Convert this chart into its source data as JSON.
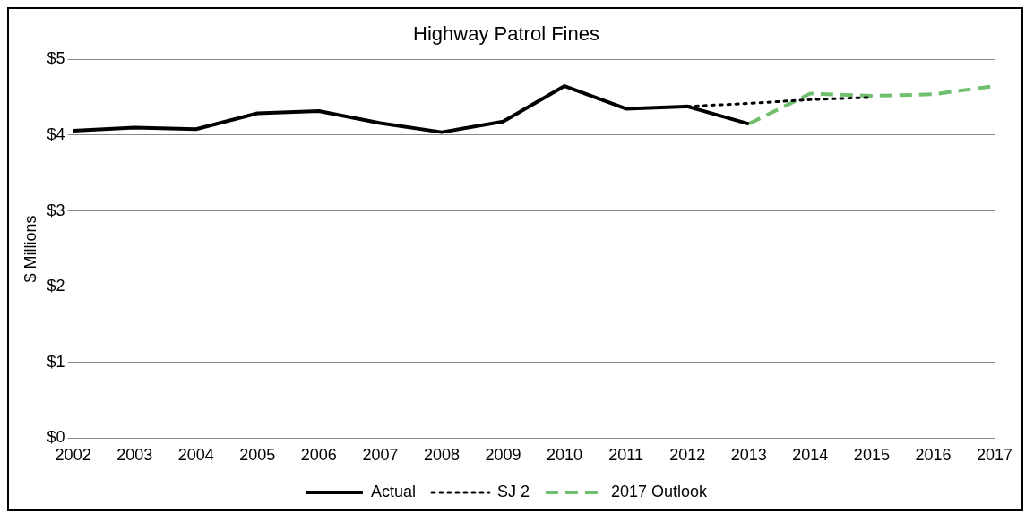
{
  "chart_data": {
    "type": "line",
    "title": "Highway Patrol Fines",
    "ylabel": "$ Millions",
    "categories": [
      "2002",
      "2003",
      "2004",
      "2005",
      "2006",
      "2007",
      "2008",
      "2009",
      "2010",
      "2011",
      "2012",
      "2013",
      "2014",
      "2015",
      "2016",
      "2017"
    ],
    "series": [
      {
        "name": "Actual",
        "color": "#000000",
        "line_style": "solid",
        "values": [
          4.06,
          4.1,
          4.08,
          4.29,
          4.32,
          4.16,
          4.04,
          4.18,
          4.65,
          4.35,
          4.38,
          4.15,
          null,
          null,
          null,
          null
        ]
      },
      {
        "name": "SJ 2",
        "color": "#000000",
        "line_style": "dotted",
        "values": [
          null,
          null,
          null,
          null,
          null,
          null,
          null,
          null,
          null,
          null,
          4.38,
          4.42,
          4.47,
          4.5,
          null,
          null
        ]
      },
      {
        "name": "2017 Outlook",
        "color": "#70bf6e",
        "line_style": "dashed",
        "values": [
          null,
          null,
          null,
          null,
          null,
          null,
          null,
          null,
          null,
          null,
          null,
          4.15,
          4.55,
          4.52,
          4.54,
          4.65
        ]
      }
    ],
    "ylim": [
      0,
      5
    ],
    "yticks": [
      {
        "value": 0,
        "label": "$0"
      },
      {
        "value": 1,
        "label": "$1"
      },
      {
        "value": 2,
        "label": "$2"
      },
      {
        "value": 3,
        "label": "$3"
      },
      {
        "value": 4,
        "label": "$4"
      },
      {
        "value": 5,
        "label": "$5"
      }
    ],
    "grid": "y",
    "legend": "bottom",
    "marker": "none"
  }
}
